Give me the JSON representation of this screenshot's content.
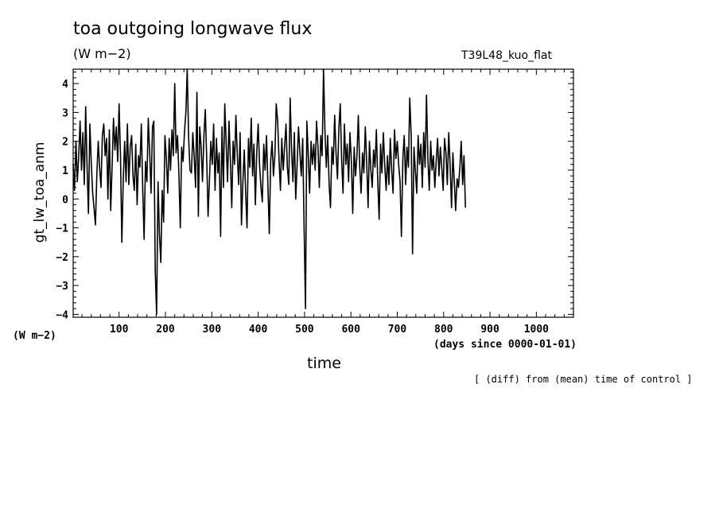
{
  "header": {
    "title": "toa outgoing longwave flux",
    "unit_top": "(W m−2)",
    "run_label": "T39L48_kuo_flat"
  },
  "footer": {
    "unit_bottom": "(W m−2)",
    "x_unit": "(days since 0000-01-01)",
    "x_label": "time",
    "note": "[ (diff) from (mean) time of control ]"
  },
  "chart_data": {
    "type": "line",
    "title": "toa outgoing longwave flux",
    "xlabel": "time",
    "ylabel": "gt_lw_toa_anm",
    "xlim": [
      1,
      1080
    ],
    "ylim": [
      -4.1,
      4.5
    ],
    "x_ticks": [
      100,
      200,
      300,
      400,
      500,
      600,
      700,
      800,
      900,
      1000
    ],
    "y_ticks": [
      -4,
      -3,
      -2,
      -1,
      0,
      1,
      2,
      3,
      4
    ],
    "grid": false,
    "line_color": "#000000",
    "series": [
      {
        "x_start": 1,
        "x_step": 3,
        "values": [
          1.2,
          0.3,
          2.0,
          0.6,
          1.5,
          2.7,
          1.0,
          2.3,
          0.5,
          3.2,
          1.1,
          -0.5,
          2.6,
          1.3,
          0.2,
          -0.3,
          -0.9,
          0.8,
          2.0,
          1.1,
          0.4,
          2.2,
          2.6,
          1.5,
          2.1,
          0.0,
          2.4,
          -0.4,
          1.2,
          2.8,
          1.7,
          2.5,
          1.3,
          3.3,
          1.5,
          -1.5,
          0.7,
          2.0,
          0.6,
          2.6,
          0.5,
          1.8,
          2.2,
          0.8,
          0.3,
          1.9,
          -0.2,
          1.5,
          1.1,
          2.6,
          0.4,
          -1.4,
          1.3,
          0.6,
          2.8,
          1.6,
          0.2,
          2.5,
          2.7,
          -2.5,
          -4.0,
          0.6,
          -1.2,
          -2.2,
          0.3,
          -0.8,
          2.2,
          1.4,
          0.2,
          2.1,
          1.0,
          2.4,
          1.5,
          4.0,
          1.6,
          2.2,
          0.9,
          -1.0,
          1.8,
          1.3,
          2.3,
          3.0,
          4.5,
          2.1,
          1.0,
          0.9,
          2.3,
          1.5,
          0.4,
          3.7,
          -0.6,
          2.5,
          1.8,
          0.6,
          2.2,
          3.1,
          1.4,
          -0.6,
          0.7,
          2.0,
          1.2,
          2.6,
          0.3,
          2.1,
          0.9,
          1.6,
          -1.3,
          2.5,
          0.4,
          3.3,
          1.9,
          0.6,
          2.7,
          1.4,
          -0.3,
          2.0,
          1.2,
          2.9,
          1.5,
          0.5,
          2.3,
          -0.9,
          0.6,
          1.7,
          0.2,
          -1.0,
          2.1,
          1.1,
          2.8,
          0.8,
          1.9,
          -0.2,
          1.6,
          2.6,
          1.2,
          0.4,
          -0.1,
          1.9,
          1.0,
          2.2,
          0.5,
          -1.2,
          1.3,
          2.0,
          0.8,
          1.5,
          3.3,
          2.7,
          1.4,
          0.3,
          2.1,
          1.0,
          1.8,
          2.6,
          1.1,
          0.5,
          3.5,
          1.7,
          0.6,
          2.3,
          0.0,
          1.2,
          2.5,
          1.6,
          0.8,
          2.1,
          -0.9,
          -3.8,
          2.7,
          1.5,
          0.2,
          2.0,
          1.2,
          1.9,
          1.0,
          2.7,
          1.8,
          0.4,
          2.2,
          1.5,
          4.5,
          2.4,
          1.1,
          2.2,
          0.5,
          -0.3,
          1.8,
          1.2,
          2.9,
          1.6,
          0.7,
          2.4,
          3.3,
          1.4,
          0.2,
          2.6,
          1.2,
          1.9,
          0.6,
          2.3,
          1.3,
          -0.5,
          1.8,
          0.8,
          1.5,
          2.9,
          1.1,
          0.2,
          1.6,
          0.9,
          2.5,
          1.3,
          -0.3,
          2.0,
          1.0,
          0.4,
          1.7,
          1.1,
          2.4,
          0.6,
          -0.7,
          1.9,
          0.9,
          2.3,
          1.2,
          0.3,
          1.5,
          0.5,
          2.1,
          1.0,
          0.2,
          2.4,
          1.4,
          2.0,
          1.2,
          0.6,
          -1.3,
          1.4,
          2.2,
          0.5,
          1.8,
          1.1,
          3.5,
          2.2,
          -1.9,
          1.8,
          1.0,
          0.2,
          2.2,
          1.2,
          1.9,
          0.4,
          2.3,
          1.1,
          3.6,
          1.4,
          0.3,
          2.0,
          1.0,
          1.5,
          0.4,
          1.3,
          2.1,
          0.8,
          1.8,
          1.1,
          0.3,
          2.1,
          1.6,
          0.5,
          2.3,
          1.2,
          -0.3,
          1.6,
          0.6,
          -0.4,
          0.7,
          0.4,
          1.1,
          2.0,
          0.5,
          1.5,
          -0.3
        ]
      }
    ]
  }
}
